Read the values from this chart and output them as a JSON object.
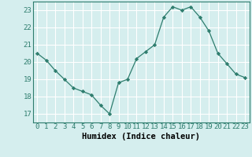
{
  "x": [
    0,
    1,
    2,
    3,
    4,
    5,
    6,
    7,
    8,
    9,
    10,
    11,
    12,
    13,
    14,
    15,
    16,
    17,
    18,
    19,
    20,
    21,
    22,
    23
  ],
  "y": [
    20.5,
    20.1,
    19.5,
    19.0,
    18.5,
    18.3,
    18.1,
    17.5,
    17.0,
    18.8,
    19.0,
    20.2,
    20.6,
    21.0,
    22.6,
    23.2,
    23.0,
    23.2,
    22.6,
    21.8,
    20.5,
    19.9,
    19.3,
    19.1
  ],
  "xlabel": "Humidex (Indice chaleur)",
  "ylabel": "",
  "xlim": [
    -0.5,
    23.5
  ],
  "ylim": [
    16.5,
    23.5
  ],
  "yticks": [
    17,
    18,
    19,
    20,
    21,
    22,
    23
  ],
  "xticks": [
    0,
    1,
    2,
    3,
    4,
    5,
    6,
    7,
    8,
    9,
    10,
    11,
    12,
    13,
    14,
    15,
    16,
    17,
    18,
    19,
    20,
    21,
    22,
    23
  ],
  "line_color": "#2e7d6e",
  "marker": "D",
  "marker_size": 2.2,
  "bg_color": "#d5eeee",
  "grid_color": "#ffffff",
  "xlabel_fontsize": 7.5,
  "tick_fontsize": 6.5
}
